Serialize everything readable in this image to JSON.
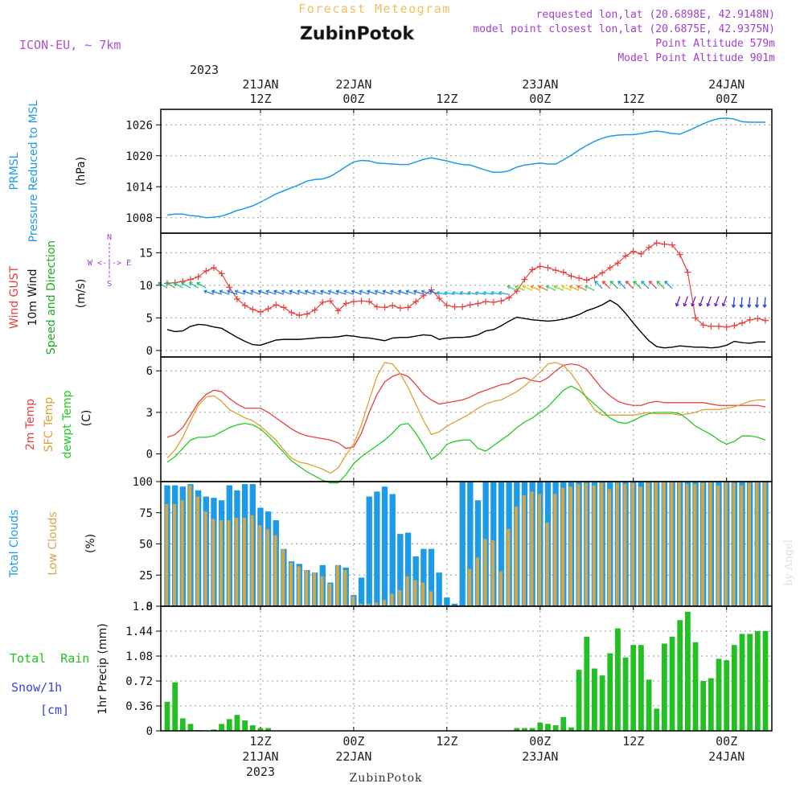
{
  "header": {
    "title_top": "Forecast Meteogram",
    "station": "ZubinPotok",
    "model": "ICON-EU, ~ 7km",
    "requested": "requested lon,lat (20.6898E, 42.9148N)",
    "closest": "model point closest lon,lat (20.6875E, 42.9375N)",
    "point_alt": "Point Altitude 579m",
    "model_alt": "Model Point Altitude 901m",
    "footer_station": "ZubinPotok",
    "credit": "by Angel"
  },
  "colors": {
    "pressure": "#1e9be8",
    "gust": "#e84040",
    "wind": "#000000",
    "temp2m": "#e84040",
    "sfc": "#e0a030",
    "dewpt": "#22cc22",
    "total_clouds": "#1e9be8",
    "low_clouds": "#d2a64a",
    "rain": "#22c022",
    "snow": "#4040e0",
    "compass": "#a040d0"
  },
  "time_axis": {
    "top_year": "2023",
    "ticks": [
      {
        "hour": 12,
        "line1": "21JAN",
        "line2": "12Z"
      },
      {
        "hour": 24,
        "line1": "22JAN",
        "line2": "00Z"
      },
      {
        "hour": 36,
        "line1": "",
        "line2": "12Z"
      },
      {
        "hour": 48,
        "line1": "23JAN",
        "line2": "00Z"
      },
      {
        "hour": 60,
        "line1": "",
        "line2": "12Z"
      },
      {
        "hour": 72,
        "line1": "24JAN",
        "line2": "00Z"
      }
    ],
    "bottom_ticks": [
      {
        "hour": 12,
        "line1": "12Z",
        "line2": "21JAN",
        "line3": "2023"
      },
      {
        "hour": 24,
        "line1": "00Z",
        "line2": "22JAN",
        "line3": ""
      },
      {
        "hour": 36,
        "line1": "12Z",
        "line2": "",
        "line3": ""
      },
      {
        "hour": 48,
        "line1": "00Z",
        "line2": "23JAN",
        "line3": ""
      },
      {
        "hour": 60,
        "line1": "12Z",
        "line2": "",
        "line3": ""
      },
      {
        "hour": 72,
        "line1": "00Z",
        "line2": "24JAN",
        "line3": ""
      }
    ]
  },
  "panel_labels": {
    "pressure": {
      "l1": "PRMSL",
      "l2": "Pressure Reduced to MSL",
      "unit": "(hPa)"
    },
    "wind": {
      "l1": "Wind GUST",
      "l2": "10m Wind",
      "l3": "Speed and Direction",
      "unit": "(m/s)",
      "compass_n": "N",
      "compass_s": "S",
      "compass_we": "W <-|-> E"
    },
    "temp": {
      "l1": "2m Temp",
      "l2": "SFC Temp",
      "l3": "dewpt Temp",
      "unit": "(C)"
    },
    "clouds": {
      "l1": "Total Clouds",
      "l2": "Low Clouds",
      "unit": "(%)"
    },
    "precip": {
      "l1": "Total  Rain",
      "l2": "Snow/1h",
      "l3": "[cm]",
      "ylabel": "1hr Precip (mm)"
    }
  },
  "chart_data": [
    {
      "type": "line",
      "name": "pressure",
      "x_hours": [
        0,
        1,
        2,
        3,
        4,
        5,
        6,
        7,
        8,
        9,
        10,
        11,
        12,
        13,
        14,
        15,
        16,
        17,
        18,
        19,
        20,
        21,
        22,
        23,
        24,
        25,
        26,
        27,
        28,
        29,
        30,
        31,
        32,
        33,
        34,
        35,
        36,
        37,
        38,
        39,
        40,
        41,
        42,
        43,
        44,
        45,
        46,
        47,
        48,
        49,
        50,
        51,
        52,
        53,
        54,
        55,
        56,
        57,
        58,
        59,
        60,
        61,
        62,
        63,
        64,
        65,
        66,
        67,
        68,
        69,
        70,
        71,
        72,
        73,
        74,
        75,
        76,
        77
      ],
      "values": [
        1008.5,
        1008.7,
        1008.7,
        1008.4,
        1008.3,
        1008,
        1008.1,
        1008.3,
        1008.8,
        1009.4,
        1009.8,
        1010.3,
        1011,
        1011.8,
        1012.6,
        1013.2,
        1013.8,
        1014.4,
        1015.1,
        1015.4,
        1015.5,
        1016,
        1016.9,
        1017.9,
        1018.8,
        1019.1,
        1019,
        1018.6,
        1018.5,
        1018.4,
        1018.3,
        1018.3,
        1018.8,
        1019.3,
        1019.6,
        1019.3,
        1019,
        1018.6,
        1018.3,
        1018.2,
        1017.7,
        1017.2,
        1016.8,
        1016.8,
        1017.1,
        1017.8,
        1018.2,
        1018.4,
        1018.6,
        1018.4,
        1018.4,
        1019.2,
        1020.1,
        1021.1,
        1022,
        1022.8,
        1023.4,
        1023.8,
        1024,
        1024.1,
        1024.1,
        1024.3,
        1024.6,
        1024.8,
        1024.6,
        1024.3,
        1024.2,
        1024.8,
        1025.5,
        1026.2,
        1026.8,
        1027.2,
        1027.3,
        1027.1,
        1026.6,
        1026.5,
        1026.5,
        1026.5
      ],
      "ylim": [
        1005,
        1029
      ],
      "yticks": [
        1008,
        1014,
        1020,
        1026
      ]
    },
    {
      "type": "line",
      "name": "wind",
      "x_hours": [
        0,
        1,
        2,
        3,
        4,
        5,
        6,
        7,
        8,
        9,
        10,
        11,
        12,
        13,
        14,
        15,
        16,
        17,
        18,
        19,
        20,
        21,
        22,
        23,
        24,
        25,
        26,
        27,
        28,
        29,
        30,
        31,
        32,
        33,
        34,
        35,
        36,
        37,
        38,
        39,
        40,
        41,
        42,
        43,
        44,
        45,
        46,
        47,
        48,
        49,
        50,
        51,
        52,
        53,
        54,
        55,
        56,
        57,
        58,
        59,
        60,
        61,
        62,
        63,
        64,
        65,
        66,
        67,
        68,
        69,
        70,
        71,
        72,
        73,
        74,
        75,
        76,
        77
      ],
      "gust": [
        10.3,
        10.4,
        10.6,
        10.9,
        11.3,
        12.2,
        12.7,
        11.8,
        9.7,
        7.9,
        6.9,
        6.3,
        5.9,
        6.4,
        7,
        6.6,
        5.8,
        5.4,
        5.6,
        6.2,
        7.4,
        7.6,
        6.1,
        7.2,
        7.5,
        7.6,
        7.5,
        6.7,
        6.6,
        6.9,
        6.5,
        6.6,
        7.5,
        8.4,
        9.3,
        8,
        6.9,
        6.7,
        6.7,
        7,
        7.2,
        7.5,
        7.4,
        7.6,
        8.1,
        9.1,
        10.9,
        12.4,
        12.9,
        12.7,
        12.3,
        12,
        11.4,
        11.1,
        10.8,
        11.2,
        11.9,
        12.7,
        13.4,
        14.5,
        15.2,
        14.8,
        15.8,
        16.5,
        16.3,
        16.2,
        14.7,
        12,
        5,
        3.9,
        3.7,
        3.7,
        3.6,
        3.8,
        4.2,
        4.7,
        4.9,
        4.6
      ],
      "wind": [
        3.2,
        2.9,
        3,
        3.7,
        4,
        3.9,
        3.6,
        3.4,
        2.7,
        2,
        1.4,
        0.9,
        0.8,
        1.2,
        1.6,
        1.7,
        1.7,
        1.7,
        1.8,
        1.9,
        2,
        2,
        2.1,
        2.3,
        2.2,
        2,
        1.9,
        1.7,
        1.5,
        1.9,
        2,
        2,
        2.2,
        2.4,
        2.3,
        1.7,
        1.9,
        2,
        2,
        2.1,
        2.4,
        3,
        3.2,
        3.8,
        4.5,
        5.1,
        4.9,
        4.7,
        4.6,
        4.5,
        4.6,
        4.8,
        5.1,
        5.5,
        6.1,
        6.5,
        7,
        7.7,
        7,
        5.7,
        4.2,
        2.8,
        1.5,
        0.6,
        0.4,
        0.5,
        0.7,
        0.6,
        0.5,
        0.5,
        0.4,
        0.5,
        0.8,
        1.4,
        1.2,
        1.1,
        1.3,
        1.3
      ],
      "ylim": [
        -1,
        18
      ],
      "yticks": [
        0,
        5,
        10,
        15
      ]
    },
    {
      "type": "line",
      "name": "temperature",
      "x_hours": [
        0,
        1,
        2,
        3,
        4,
        5,
        6,
        7,
        8,
        9,
        10,
        11,
        12,
        13,
        14,
        15,
        16,
        17,
        18,
        19,
        20,
        21,
        22,
        23,
        24,
        25,
        26,
        27,
        28,
        29,
        30,
        31,
        32,
        33,
        34,
        35,
        36,
        37,
        38,
        39,
        40,
        41,
        42,
        43,
        44,
        45,
        46,
        47,
        48,
        49,
        50,
        51,
        52,
        53,
        54,
        55,
        56,
        57,
        58,
        59,
        60,
        61,
        62,
        63,
        64,
        65,
        66,
        67,
        68,
        69,
        70,
        71,
        72,
        73,
        74,
        75,
        76,
        77
      ],
      "temp2m": [
        1.2,
        1.4,
        1.9,
        2.8,
        3.7,
        4.3,
        4.6,
        4.5,
        4,
        3.6,
        3.3,
        3.3,
        3.3,
        3,
        2.6,
        2.2,
        1.8,
        1.5,
        1.3,
        1.2,
        1.1,
        1,
        0.8,
        0.4,
        0.5,
        1.5,
        3,
        4.3,
        5.2,
        5.6,
        5.8,
        5.6,
        5,
        4.3,
        3.9,
        3.6,
        3.7,
        3.8,
        3.9,
        4.1,
        4.4,
        4.6,
        4.8,
        5,
        5.1,
        5.4,
        5.5,
        5.3,
        5.2,
        5.5,
        6,
        6.4,
        6.5,
        6.4,
        6.1,
        5.4,
        4.7,
        4.2,
        3.8,
        3.6,
        3.5,
        3.5,
        3.7,
        3.8,
        3.7,
        3.7,
        3.7,
        3.7,
        3.7,
        3.7,
        3.6,
        3.5,
        3.5,
        3.5,
        3.5,
        3.5,
        3.5,
        3.4
      ],
      "sfc": [
        -0.3,
        0.3,
        1.2,
        2.4,
        3.5,
        4.1,
        4.2,
        3.8,
        3.2,
        2.9,
        2.6,
        2.4,
        2,
        1.5,
        1,
        0.3,
        -0.3,
        -0.6,
        -0.7,
        -0.9,
        -1.1,
        -1.4,
        -1,
        -0.1,
        0.7,
        2.1,
        3.9,
        5.6,
        6.6,
        6.5,
        5.8,
        4.8,
        3.6,
        2.4,
        1.4,
        1.6,
        2,
        2.3,
        2.6,
        2.9,
        3.3,
        3.6,
        3.8,
        3.9,
        4.2,
        4.5,
        4.9,
        5.4,
        5.9,
        6.5,
        6.6,
        6.4,
        5.8,
        5,
        4,
        3.2,
        2.8,
        2.8,
        2.8,
        2.8,
        2.8,
        2.9,
        3,
        2.9,
        2.9,
        2.9,
        2.8,
        2.9,
        3,
        3.2,
        3.2,
        3.2,
        3.3,
        3.4,
        3.6,
        3.8,
        3.9,
        3.9
      ],
      "dewpt": [
        -0.6,
        -0.2,
        0.4,
        1,
        1.2,
        1.2,
        1.3,
        1.6,
        1.9,
        2.1,
        2.2,
        2.1,
        1.8,
        1.3,
        0.7,
        0.1,
        -0.5,
        -0.9,
        -1.3,
        -1.6,
        -1.9,
        -2.1,
        -2.1,
        -1.5,
        -0.7,
        -0.2,
        0.2,
        0.6,
        1,
        1.5,
        2.1,
        2.2,
        1.5,
        0.6,
        -0.4,
        0,
        0.7,
        0.9,
        1,
        1,
        0.4,
        0.2,
        0.6,
        1,
        1.4,
        1.9,
        2.3,
        2.6,
        3,
        3.4,
        4,
        4.6,
        4.9,
        4.6,
        4.1,
        3.6,
        3.1,
        2.6,
        2.3,
        2.2,
        2.4,
        2.7,
        2.9,
        3,
        3,
        3,
        2.9,
        2.5,
        2,
        1.7,
        1.4,
        1,
        0.7,
        0.9,
        1.3,
        1.3,
        1.2,
        1
      ],
      "ylim": [
        -2,
        7
      ],
      "yticks": [
        0,
        3,
        6
      ]
    },
    {
      "type": "bar",
      "name": "clouds",
      "x_hours": [
        0,
        1,
        2,
        3,
        4,
        5,
        6,
        7,
        8,
        9,
        10,
        11,
        12,
        13,
        14,
        15,
        16,
        17,
        18,
        19,
        20,
        21,
        22,
        23,
        24,
        25,
        26,
        27,
        28,
        29,
        30,
        31,
        32,
        33,
        34,
        35,
        36,
        37,
        38,
        39,
        40,
        41,
        42,
        43,
        44,
        45,
        46,
        47,
        48,
        49,
        50,
        51,
        52,
        53,
        54,
        55,
        56,
        57,
        58,
        59,
        60,
        61,
        62,
        63,
        64,
        65,
        66,
        67,
        68,
        69,
        70,
        71,
        72,
        73,
        74,
        75,
        76,
        77
      ],
      "total": [
        97,
        97,
        96,
        98,
        93,
        88,
        87,
        85,
        97,
        93,
        98,
        98,
        79,
        76,
        69,
        46,
        36,
        34,
        29,
        27,
        33,
        19,
        33,
        31,
        9,
        23,
        88,
        92,
        96,
        90,
        58,
        59,
        40,
        46,
        46,
        27,
        7,
        2,
        100,
        100,
        85,
        100,
        100,
        100,
        100,
        100,
        100,
        100,
        100,
        100,
        100,
        100,
        100,
        100,
        100,
        100,
        100,
        100,
        100,
        100,
        100,
        100,
        100,
        100,
        100,
        100,
        100,
        100,
        100,
        100,
        100,
        100,
        100,
        100,
        100,
        100,
        100,
        100
      ],
      "low": [
        82,
        82,
        85,
        97,
        88,
        76,
        70,
        69,
        69,
        71,
        71,
        73,
        65,
        62,
        57,
        46,
        35,
        32,
        29,
        27,
        24,
        18,
        33,
        29,
        8,
        2,
        2,
        3,
        5,
        10,
        13,
        24,
        21,
        19,
        12,
        0,
        0,
        0,
        0,
        30,
        39,
        54,
        53,
        28,
        62,
        80,
        89,
        92,
        90,
        67,
        90,
        95,
        96,
        98,
        99,
        97,
        99,
        94,
        99,
        98,
        99,
        96,
        99,
        100,
        100,
        100,
        100,
        98,
        98,
        99,
        100,
        97,
        100,
        99,
        97,
        99,
        100,
        100
      ],
      "ylim": [
        0,
        100
      ],
      "yticks": [
        0,
        25,
        50,
        75,
        100
      ]
    },
    {
      "type": "bar",
      "name": "precipitation",
      "x_hours": [
        0,
        1,
        2,
        3,
        4,
        5,
        6,
        7,
        8,
        9,
        10,
        11,
        12,
        13,
        14,
        15,
        16,
        17,
        18,
        19,
        20,
        21,
        22,
        23,
        24,
        25,
        26,
        27,
        28,
        29,
        30,
        31,
        32,
        33,
        34,
        35,
        36,
        37,
        38,
        39,
        40,
        41,
        42,
        43,
        44,
        45,
        46,
        47,
        48,
        49,
        50,
        51,
        52,
        53,
        54,
        55,
        56,
        57,
        58,
        59,
        60,
        61,
        62,
        63,
        64,
        65,
        66,
        67,
        68,
        69,
        70,
        71,
        72,
        73,
        74,
        75,
        76,
        77
      ],
      "rain": [
        0.42,
        0.7,
        0.18,
        0.1,
        0.01,
        0,
        0.02,
        0.1,
        0.17,
        0.23,
        0.15,
        0.08,
        0.04,
        0.04,
        0,
        0,
        0,
        0,
        0,
        0,
        0,
        0,
        0,
        0,
        0,
        0,
        0,
        0,
        0,
        0,
        0,
        0,
        0,
        0,
        0,
        0,
        0,
        0,
        0,
        0,
        0,
        0,
        0,
        0,
        0,
        0.04,
        0.04,
        0.04,
        0.12,
        0.1,
        0.08,
        0.2,
        0.05,
        0.88,
        1.36,
        0.9,
        0.8,
        1.12,
        1.48,
        1.06,
        1.24,
        1.24,
        0.74,
        0.32,
        1.26,
        1.36,
        1.6,
        1.72,
        1.28,
        0.72,
        0.76,
        1.04,
        1.02,
        1.24,
        1.4,
        1.4,
        1.44,
        1.44
      ],
      "ylim": [
        0,
        1.8
      ],
      "yticks": [
        0,
        0.36,
        0.72,
        1.08,
        1.44,
        1.8
      ]
    }
  ]
}
